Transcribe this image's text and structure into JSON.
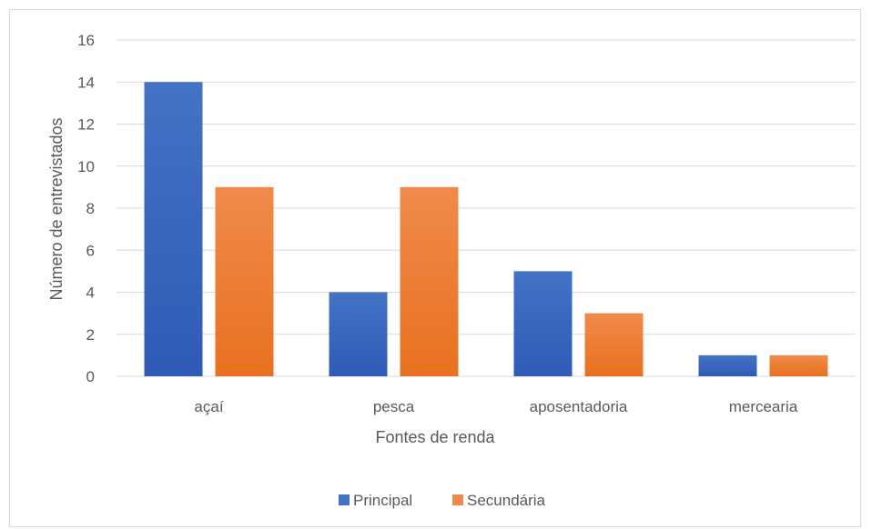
{
  "chart_data": {
    "type": "bar",
    "title": "",
    "xlabel": "Fontes de renda",
    "ylabel": "Número de entrevistados",
    "categories": [
      "açaí",
      "pesca",
      "aposentadoria",
      "mercearia"
    ],
    "series": [
      {
        "name": "Principal",
        "values": [
          14,
          4,
          5,
          1
        ],
        "color": "#4472c4",
        "color_dark": "#2f5bb7"
      },
      {
        "name": "Secundária",
        "values": [
          9,
          9,
          3,
          1
        ],
        "color": "#f08a4b",
        "color_dark": "#e8711f"
      }
    ],
    "ylim": [
      0,
      16
    ],
    "yticks": [
      0,
      2,
      4,
      6,
      8,
      10,
      12,
      14,
      16
    ],
    "grid": true,
    "legend": "bottom",
    "gridline_color": "#d9d9d9"
  }
}
